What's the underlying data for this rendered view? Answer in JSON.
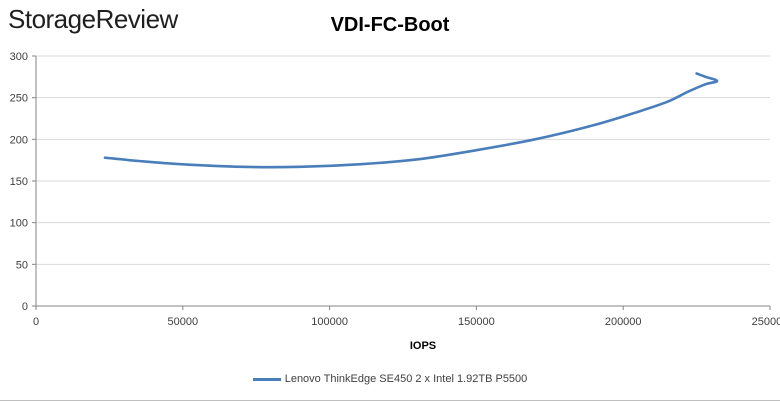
{
  "brand": "StorageReview",
  "chart_data": {
    "type": "line",
    "title": "VDI-FC-Boot",
    "xlabel": "IOPS",
    "ylabel": "",
    "xlim": [
      0,
      250000
    ],
    "ylim": [
      0,
      300
    ],
    "xticks": [
      0,
      50000,
      100000,
      150000,
      200000,
      250000
    ],
    "xtick_labels": [
      "0",
      "50000",
      "100000",
      "150000",
      "200000",
      "250000"
    ],
    "yticks": [
      0,
      50,
      100,
      150,
      200,
      250,
      300
    ],
    "ytick_labels": [
      "0",
      "50",
      "100",
      "150",
      "200",
      "250",
      "300"
    ],
    "grid": true,
    "legend": "bottom",
    "series": [
      {
        "name": "Lenovo ThinkEdge SE450 2 x Intel 1.92TB P5500",
        "color": "#4a7ebb",
        "x": [
          23500,
          35000,
          50000,
          70000,
          90000,
          110000,
          130000,
          150000,
          170000,
          190000,
          205000,
          215000,
          222000,
          228000,
          232000,
          228000,
          225000
        ],
        "y": [
          178,
          174,
          170,
          167,
          167,
          170,
          176,
          187,
          200,
          217,
          233,
          245,
          257,
          266,
          270,
          275,
          279
        ]
      }
    ]
  }
}
